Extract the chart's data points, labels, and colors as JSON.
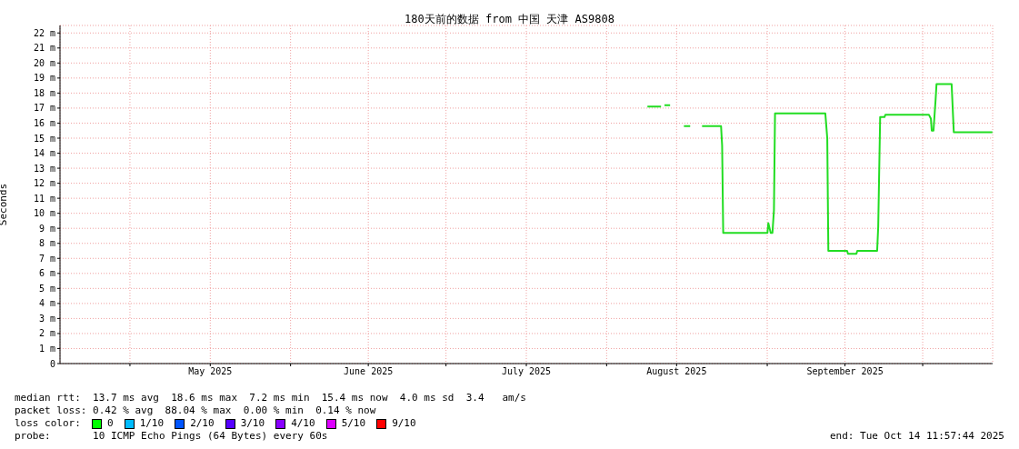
{
  "chart_data": {
    "type": "line",
    "title": "180天前的数据 from 中国 天津 AS9808",
    "ylabel": "Seconds",
    "x": [
      "2025-08-08T21:00",
      "2025-08-11T12:00",
      "2025-08-11T20:00",
      "2025-08-12T04:00",
      "2025-08-13T06:00",
      "2025-08-14T12:00",
      "2025-08-15T22:00",
      "2025-08-17T03:00",
      "2025-08-18T12:00",
      "2025-08-19T10:00",
      "2025-08-23T02:00",
      "2025-08-23T07:00",
      "2025-08-23T12:00",
      "2025-09-01T01:00",
      "2025-09-01T05:00",
      "2025-09-01T16:00",
      "2025-09-02T00:00",
      "2025-09-02T07:00",
      "2025-09-02T12:00",
      "2025-09-12T05:00",
      "2025-09-12T14:00",
      "2025-09-12T19:00",
      "2025-09-16T10:00",
      "2025-09-16T14:00",
      "2025-09-18T05:00",
      "2025-09-18T09:00",
      "2025-09-22T05:00",
      "2025-09-22T10:00",
      "2025-09-22T19:00",
      "2025-09-23T15:00",
      "2025-09-23T19:00",
      "2025-10-02T05:00",
      "2025-10-02T14:00",
      "2025-10-02T18:00",
      "2025-10-03T02:00",
      "2025-10-03T12:00",
      "2025-10-03T16:00",
      "2025-10-06T14:00",
      "2025-10-07T00:00",
      "2025-10-14T11:00"
    ],
    "series": [
      {
        "color": "#22dd22",
        "values": [
          17.1,
          17.1,
          null,
          17.2,
          17.2,
          null,
          15.8,
          15.8,
          null,
          15.8,
          15.8,
          14.5,
          8.7,
          8.7,
          9.35,
          8.7,
          8.7,
          10.2,
          16.65,
          16.65,
          15.0,
          7.5,
          7.5,
          7.3,
          7.3,
          7.5,
          7.5,
          9.1,
          16.4,
          16.4,
          16.55,
          16.55,
          16.3,
          15.5,
          15.5,
          17.6,
          18.6,
          18.6,
          15.4,
          15.4
        ]
      }
    ],
    "xlim": [
      "2025-04-17T12:00",
      "2025-10-14T12:00"
    ],
    "xticks": [
      {
        "value": "2025-05-01",
        "label": null
      },
      {
        "value": "2025-05-16T12:00",
        "label": "May 2025"
      },
      {
        "value": "2025-06-01",
        "label": null
      },
      {
        "value": "2025-06-16",
        "label": "June 2025"
      },
      {
        "value": "2025-07-01",
        "label": null
      },
      {
        "value": "2025-07-16T12:00",
        "label": "July 2025"
      },
      {
        "value": "2025-08-01",
        "label": null
      },
      {
        "value": "2025-08-14T12:00",
        "label": "August 2025"
      },
      {
        "value": "2025-09-01",
        "label": null
      },
      {
        "value": "2025-09-16",
        "label": "September 2025"
      },
      {
        "value": "2025-10-01",
        "label": null
      }
    ],
    "ylim": [
      0,
      22.5
    ],
    "yticks": [
      0,
      {
        "value": 1,
        "label": "1 m"
      },
      {
        "value": 2,
        "label": "2 m"
      },
      {
        "value": 3,
        "label": "3 m"
      },
      {
        "value": 4,
        "label": "4 m"
      },
      {
        "value": 5,
        "label": "5 m"
      },
      {
        "value": 6,
        "label": "6 m"
      },
      {
        "value": 7,
        "label": "7 m"
      },
      {
        "value": 8,
        "label": "8 m"
      },
      {
        "value": 9,
        "label": "9 m"
      },
      {
        "value": 10,
        "label": "10 m"
      },
      {
        "value": 11,
        "label": "11 m"
      },
      {
        "value": 12,
        "label": "12 m"
      },
      {
        "value": 13,
        "label": "13 m"
      },
      {
        "value": 14,
        "label": "14 m"
      },
      {
        "value": 15,
        "label": "15 m"
      },
      {
        "value": 16,
        "label": "16 m"
      },
      {
        "value": 17,
        "label": "17 m"
      },
      {
        "value": 18,
        "label": "18 m"
      },
      {
        "value": 19,
        "label": "19 m"
      },
      {
        "value": 20,
        "label": "20 m"
      },
      {
        "value": 21,
        "label": "21 m"
      },
      {
        "value": 22,
        "label": "22 m"
      }
    ],
    "grid": true,
    "annotations": [
      "median rtt:  13.7 ms avg  18.6 ms max  7.2 ms min  15.4 ms now  4.0 ms sd  3.4   am/s",
      "packet loss: 0.42 % avg  88.04 % max  0.00 % min  0.14 % now",
      "loss color:",
      "0",
      "1/10",
      "2/10",
      "3/10",
      "4/10",
      "5/10",
      "9/10",
      "probe:       10 ICMP Echo Pings (64 Bytes) every 60s",
      "end: Tue Oct 14 11:57:44 2025"
    ]
  }
}
